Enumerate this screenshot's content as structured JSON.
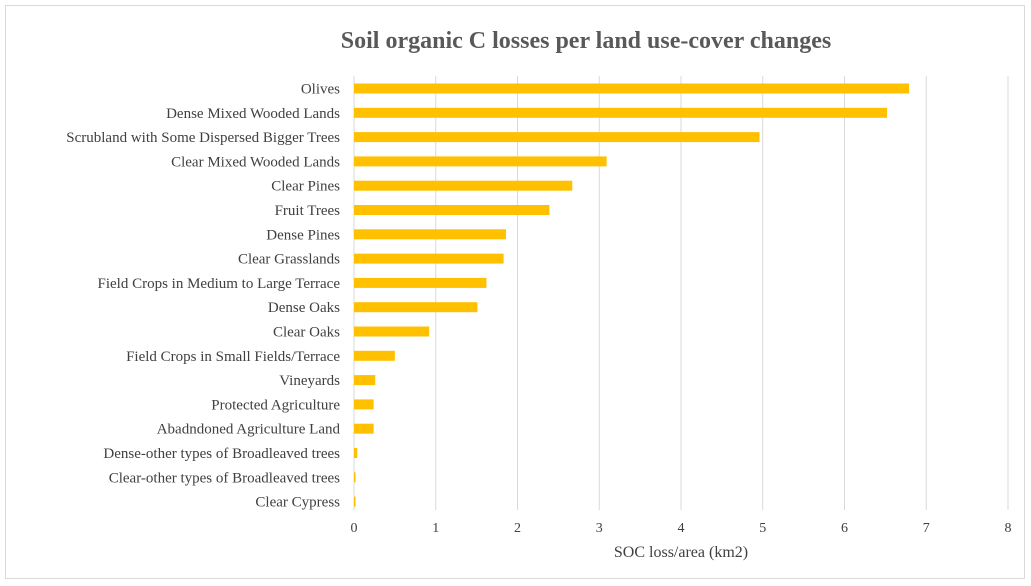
{
  "chart_data": {
    "type": "bar",
    "orientation": "horizontal",
    "title": "Soil organic C losses per land use-cover changes",
    "xlabel": "SOC loss/area (km2)",
    "ylabel": "",
    "xlim": [
      0,
      8
    ],
    "xticks": [
      0,
      1,
      2,
      3,
      4,
      5,
      6,
      7,
      8
    ],
    "grid": true,
    "legend": "none",
    "bar_color": "#FFC000",
    "grid_color": "#d9d9d9",
    "categories": [
      "Olives",
      "Dense Mixed Wooded Lands",
      "Scrubland with Some Dispersed Bigger Trees",
      "Clear Mixed Wooded Lands",
      "Clear Pines",
      "Fruit Trees",
      "Dense Pines",
      "Clear Grasslands",
      "Field Crops in Medium to Large Terrace",
      "Dense Oaks",
      "Clear Oaks",
      "Field Crops in Small Fields/Terrace",
      "Vineyards",
      "Protected Agriculture",
      "Abadndoned Agriculture Land",
      "Dense-other types of Broadleaved trees",
      "Clear-other types of Broadleaved trees",
      "Clear Cypress"
    ],
    "values": [
      6.79,
      6.52,
      4.96,
      3.09,
      2.67,
      2.39,
      1.86,
      1.83,
      1.62,
      1.51,
      0.92,
      0.5,
      0.26,
      0.24,
      0.24,
      0.04,
      0.01,
      0.01
    ]
  }
}
